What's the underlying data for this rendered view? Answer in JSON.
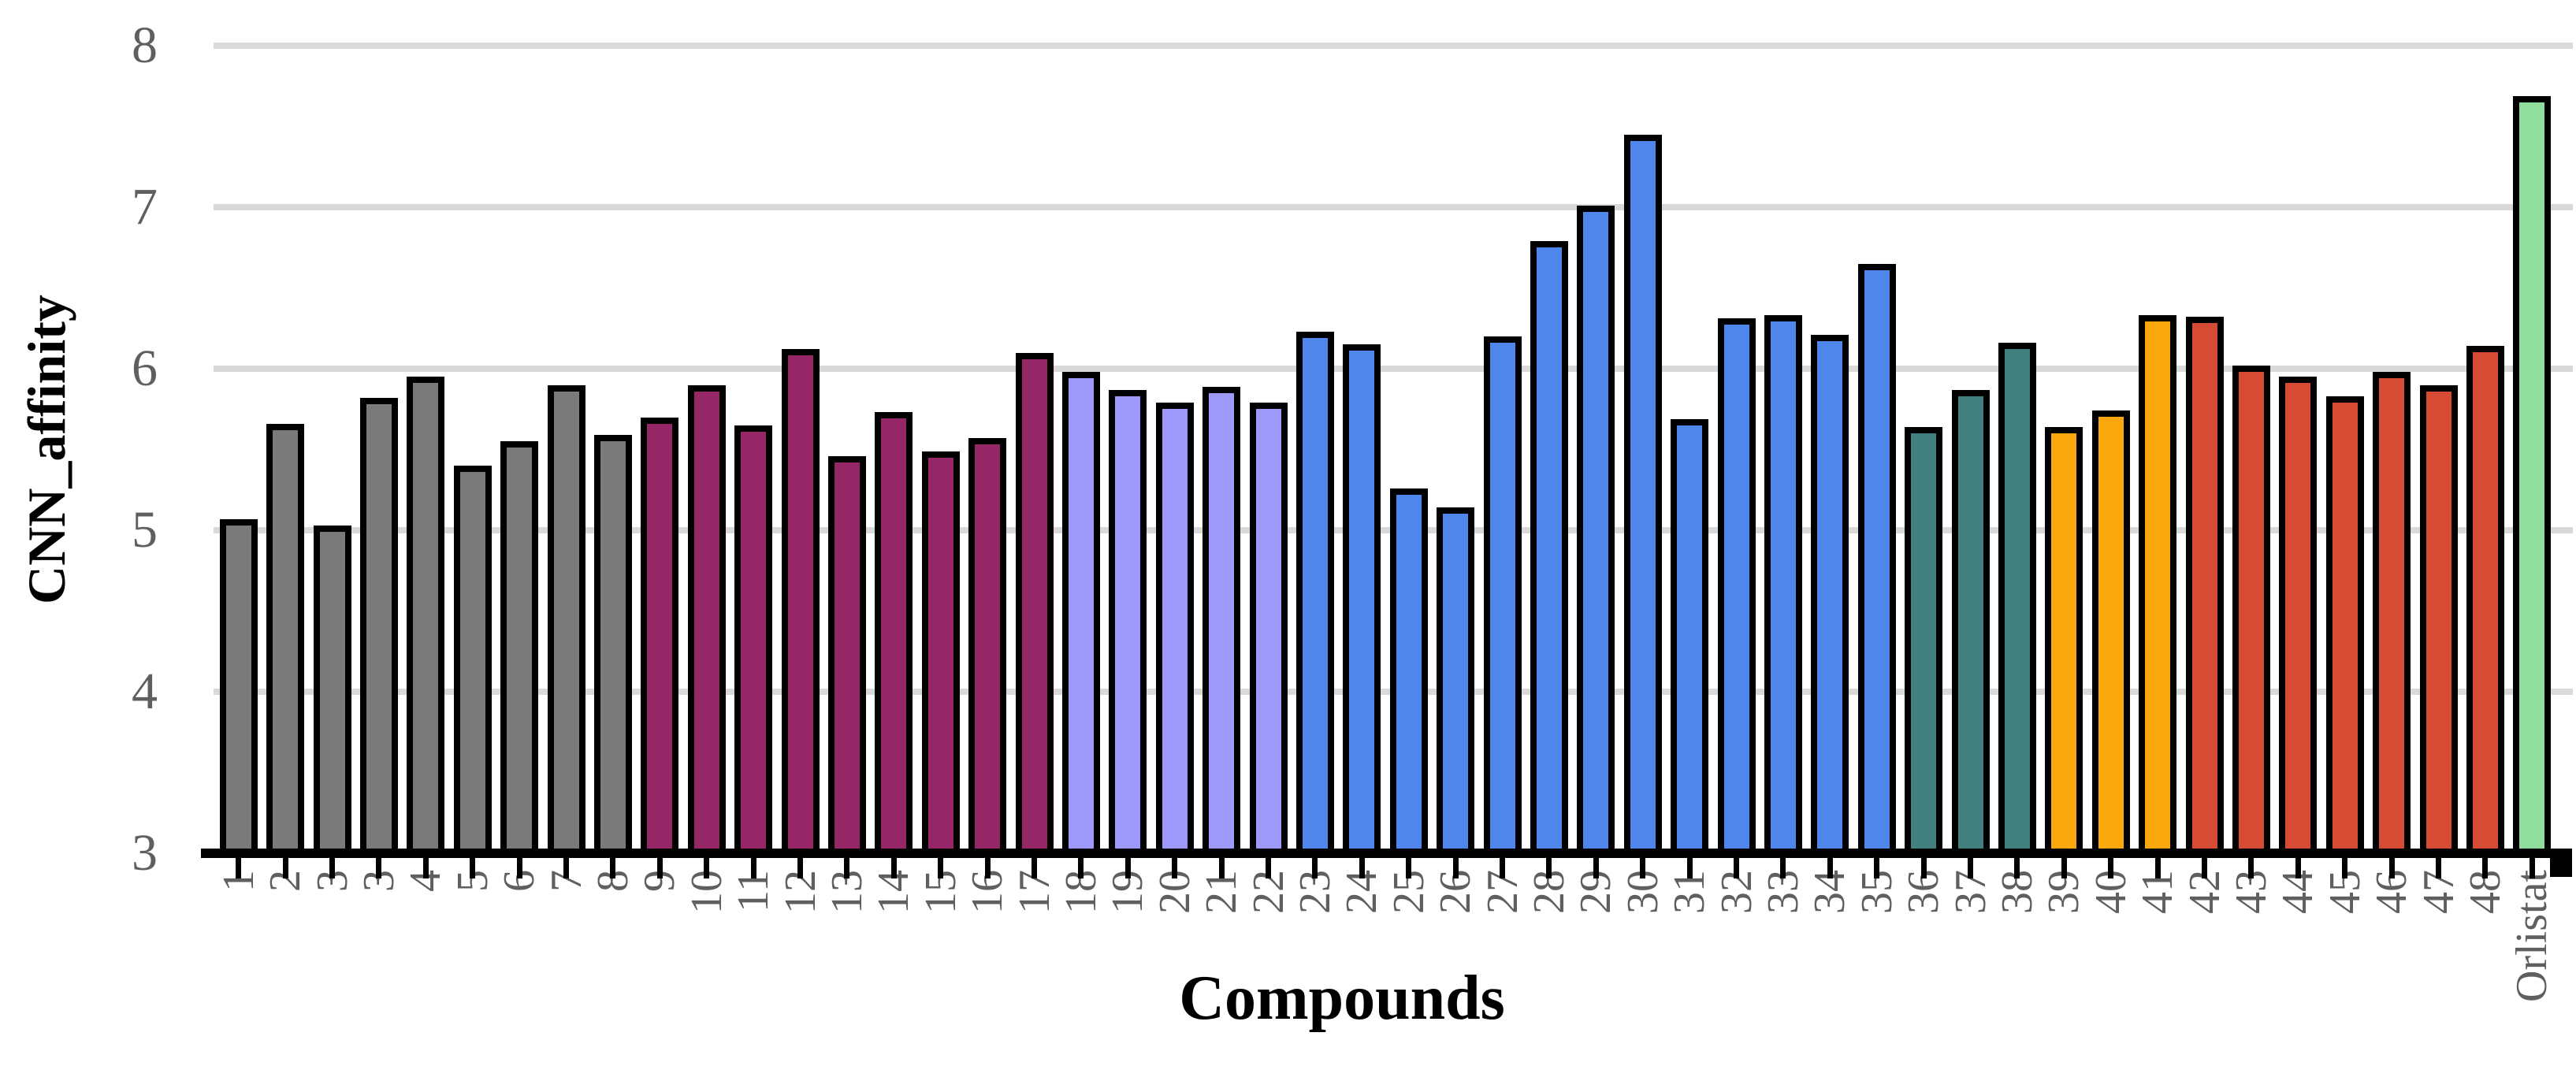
{
  "chart_data": {
    "type": "bar",
    "title": "",
    "xlabel": "Compounds",
    "ylabel": "CNN_affinity",
    "ylim": [
      3,
      8
    ],
    "yticks": [
      3,
      4,
      5,
      6,
      7,
      8
    ],
    "grid": true,
    "legend": false,
    "categories": [
      "1",
      "2",
      "3",
      "3",
      "4",
      "5",
      "6",
      "7",
      "8",
      "9",
      "10",
      "11",
      "12",
      "13",
      "14",
      "15",
      "16",
      "17",
      "18",
      "19",
      "20",
      "21",
      "22",
      "23",
      "24",
      "25",
      "26",
      "27",
      "28",
      "29",
      "30",
      "31",
      "32",
      "33",
      "34",
      "35",
      "36",
      "37",
      "38",
      "39",
      "40",
      "41",
      "42",
      "43",
      "44",
      "45",
      "46",
      "47",
      "48",
      "Orlistat"
    ],
    "series": [
      {
        "name": "CNN_affinity",
        "values": [
          5.07,
          5.66,
          5.03,
          5.82,
          5.95,
          5.4,
          5.55,
          5.9,
          5.59,
          5.7,
          5.9,
          5.65,
          6.12,
          5.46,
          5.73,
          5.49,
          5.57,
          6.1,
          5.98,
          5.87,
          5.79,
          5.89,
          5.79,
          6.23,
          6.15,
          5.26,
          5.14,
          6.2,
          6.79,
          7.01,
          7.45,
          5.69,
          6.31,
          6.33,
          6.21,
          6.65,
          5.64,
          5.87,
          6.16,
          5.64,
          5.74,
          6.33,
          6.32,
          6.02,
          5.95,
          5.83,
          5.98,
          5.9,
          6.14,
          7.69
        ]
      }
    ],
    "point_color_keys": [
      "gray",
      "gray",
      "gray",
      "gray",
      "gray",
      "gray",
      "gray",
      "gray",
      "gray",
      "maroon",
      "maroon",
      "maroon",
      "maroon",
      "maroon",
      "maroon",
      "maroon",
      "maroon",
      "maroon",
      "lavender",
      "lavender",
      "lavender",
      "lavender",
      "lavender",
      "blue",
      "blue",
      "blue",
      "blue",
      "blue",
      "blue",
      "blue",
      "blue",
      "blue",
      "blue",
      "blue",
      "blue",
      "blue",
      "teal",
      "teal",
      "teal",
      "orange",
      "orange",
      "orange",
      "red",
      "red",
      "red",
      "red",
      "red",
      "red",
      "red",
      "green"
    ],
    "palette": {
      "gray": "#7A7A7A",
      "maroon": "#952766",
      "lavender": "#9D99FA",
      "blue": "#4E86EB",
      "teal": "#41807E",
      "orange": "#FAA60D",
      "red": "#D54B33",
      "green": "#8FDE9D"
    },
    "axis": {
      "grid_color": "#D9D9D9",
      "axis_line_color": "#000000",
      "bar_border_color": "#000000",
      "tick_label_color": "#5F5F5F",
      "title_color": "#000000"
    }
  }
}
